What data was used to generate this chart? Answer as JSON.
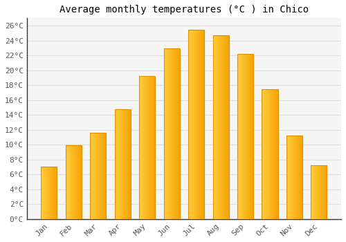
{
  "title": "Average monthly temperatures (°C ) in Chico",
  "months": [
    "Jan",
    "Feb",
    "Mar",
    "Apr",
    "May",
    "Jun",
    "Jul",
    "Aug",
    "Sep",
    "Oct",
    "Nov",
    "Dec"
  ],
  "values": [
    7.0,
    9.9,
    11.6,
    14.8,
    19.2,
    22.9,
    25.4,
    24.7,
    22.2,
    17.5,
    11.2,
    7.2
  ],
  "bar_color_left": "#FFCB3C",
  "bar_color_right": "#F5A200",
  "ylim": [
    0,
    27
  ],
  "yticks": [
    0,
    2,
    4,
    6,
    8,
    10,
    12,
    14,
    16,
    18,
    20,
    22,
    24,
    26
  ],
  "ytick_labels": [
    "0°C",
    "2°C",
    "4°C",
    "6°C",
    "8°C",
    "10°C",
    "12°C",
    "14°C",
    "16°C",
    "18°C",
    "20°C",
    "22°C",
    "24°C",
    "26°C"
  ],
  "background_color": "#ffffff",
  "plot_bg_color": "#f5f5f5",
  "grid_color": "#dddddd",
  "title_fontsize": 10,
  "tick_fontsize": 8,
  "font_family": "monospace",
  "bar_width": 0.65,
  "bar_edge_color": "#E09000"
}
